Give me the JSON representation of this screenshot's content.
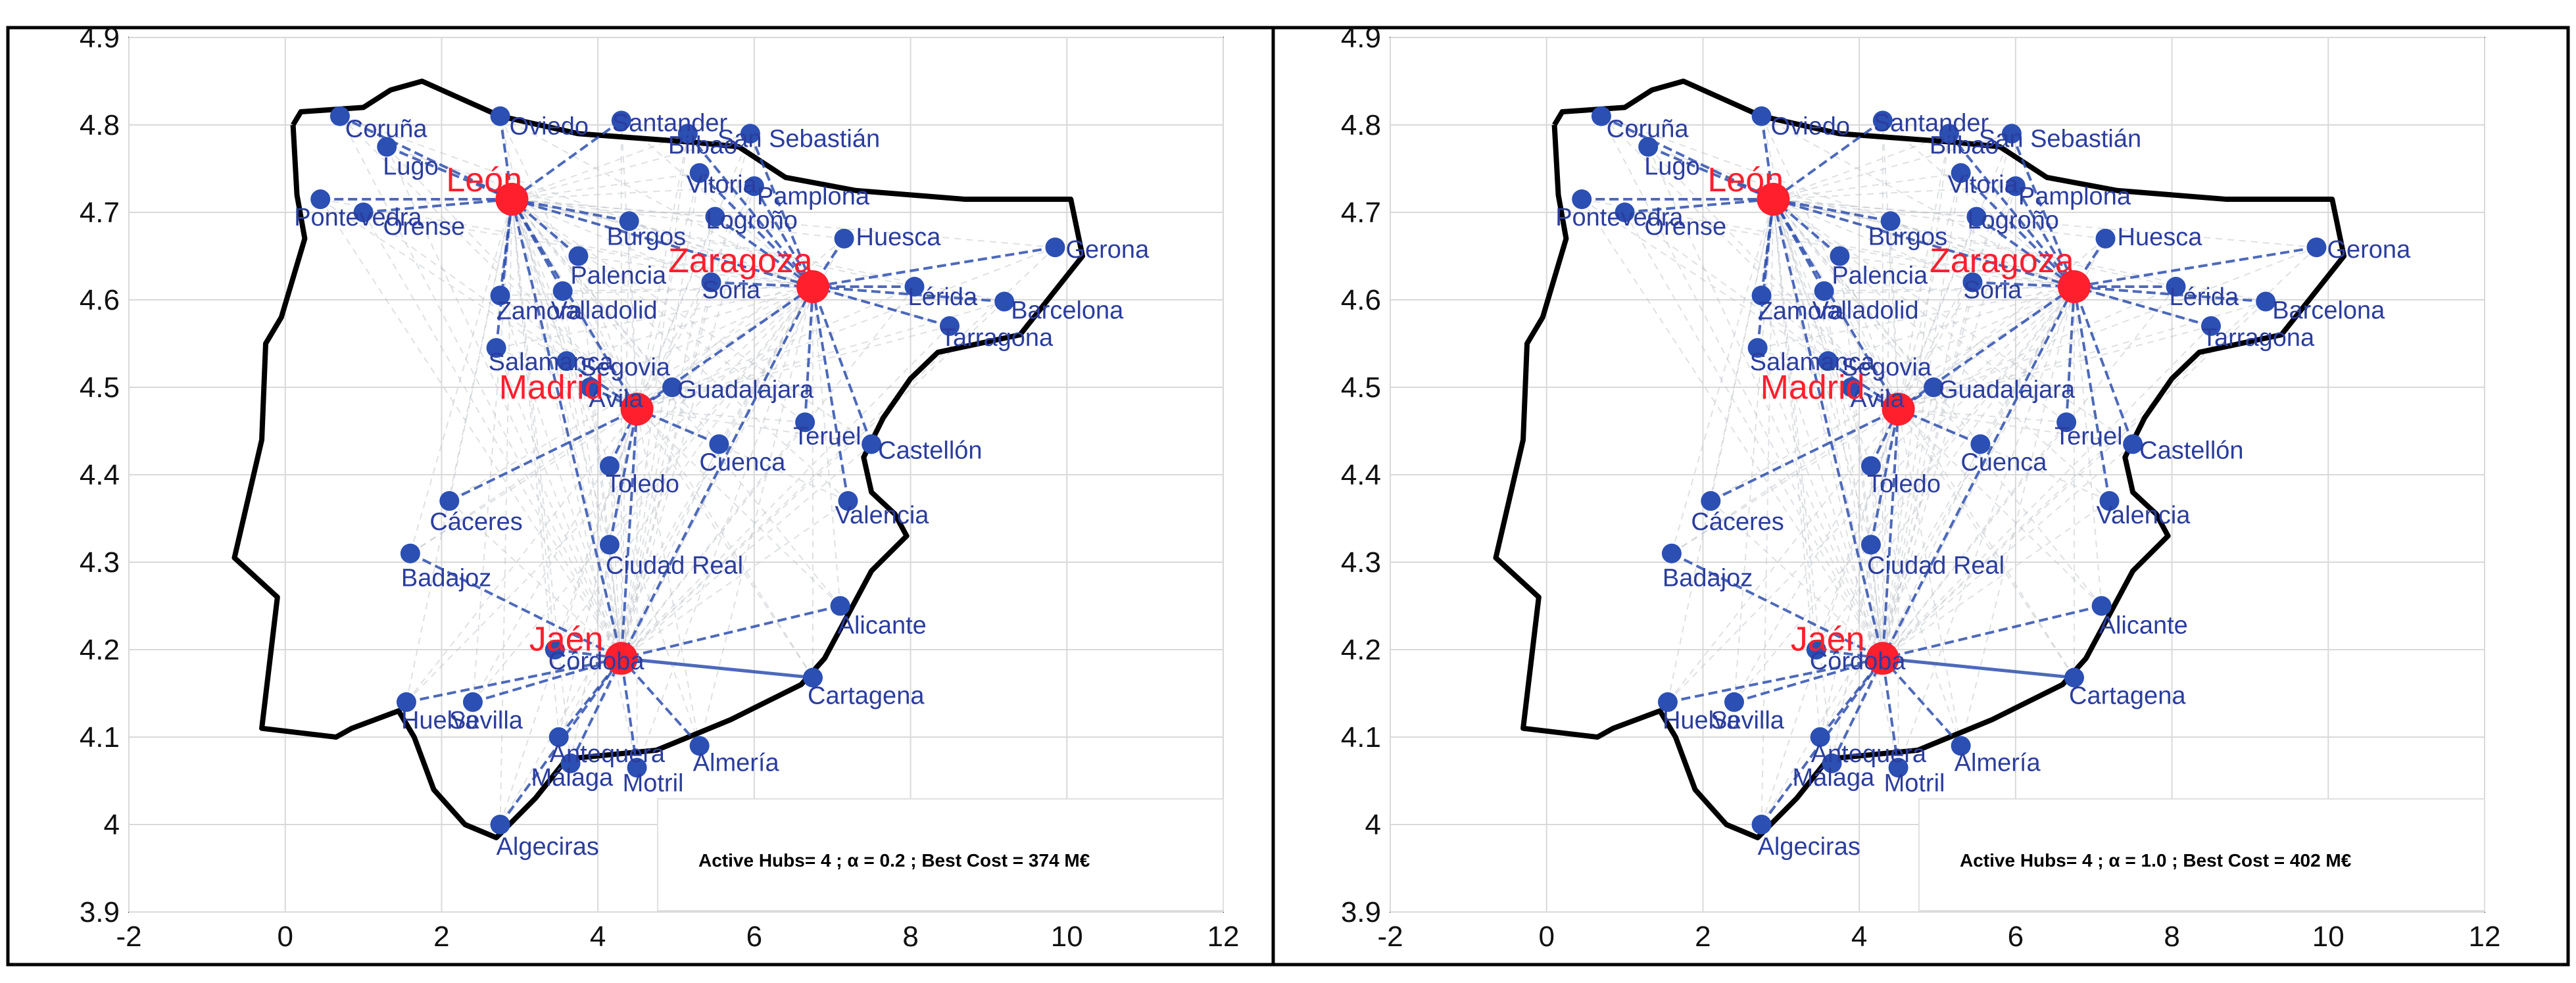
{
  "chart_data": [
    {
      "type": "scatter",
      "title": "",
      "xlabel": "",
      "ylabel": "",
      "xlim": [
        -2,
        12
      ],
      "ylim": [
        3.9,
        4.9
      ],
      "xticks": [
        "-2",
        "0",
        "2",
        "4",
        "6",
        "8",
        "10",
        "12"
      ],
      "yticks": [
        "3.9",
        "4",
        "4.1",
        "4.2",
        "4.3",
        "4.4",
        "4.5",
        "4.6",
        "4.7",
        "4.8",
        "4.9"
      ],
      "grid": true,
      "annotation": "Active Hubs= 4 ; α = 0.2 ;  Best Cost = 374 M€",
      "hubs": [
        {
          "name": "León",
          "x": 2.9,
          "y": 4.715
        },
        {
          "name": "Zaragoza",
          "x": 6.75,
          "y": 4.615
        },
        {
          "name": "Madrid",
          "x": 4.5,
          "y": 4.475
        },
        {
          "name": "Jaén",
          "x": 4.3,
          "y": 4.19
        }
      ],
      "cities": [
        {
          "name": "Coruña",
          "x": 0.7,
          "y": 4.81,
          "hub": "León"
        },
        {
          "name": "Lugo",
          "x": 1.3,
          "y": 4.775,
          "hub": "León"
        },
        {
          "name": "Oviedo",
          "x": 2.75,
          "y": 4.81,
          "hub": "León"
        },
        {
          "name": "Santander",
          "x": 4.3,
          "y": 4.805,
          "hub": "León"
        },
        {
          "name": "Bilbao",
          "x": 5.15,
          "y": 4.79,
          "hub": "Zaragoza"
        },
        {
          "name": "San Sebastián",
          "x": 5.95,
          "y": 4.79,
          "hub": "Zaragoza"
        },
        {
          "name": "Pontevedra",
          "x": 0.45,
          "y": 4.715,
          "hub": "León"
        },
        {
          "name": "Orense",
          "x": 1.0,
          "y": 4.7,
          "hub": "León"
        },
        {
          "name": "Vitoria",
          "x": 5.3,
          "y": 4.745,
          "hub": "Zaragoza"
        },
        {
          "name": "Pamplona",
          "x": 6.0,
          "y": 4.73,
          "hub": "Zaragoza"
        },
        {
          "name": "Logroño",
          "x": 5.5,
          "y": 4.695,
          "hub": "Zaragoza"
        },
        {
          "name": "Burgos",
          "x": 4.4,
          "y": 4.69,
          "hub": "León"
        },
        {
          "name": "Huesca",
          "x": 7.15,
          "y": 4.67,
          "hub": "Zaragoza"
        },
        {
          "name": "Palencia",
          "x": 3.75,
          "y": 4.65,
          "hub": "León"
        },
        {
          "name": "Soria",
          "x": 5.45,
          "y": 4.62,
          "hub": "Zaragoza"
        },
        {
          "name": "Gerona",
          "x": 9.85,
          "y": 4.66,
          "hub": "Zaragoza"
        },
        {
          "name": "Lérida",
          "x": 8.05,
          "y": 4.615,
          "hub": "Zaragoza"
        },
        {
          "name": "Barcelona",
          "x": 9.2,
          "y": 4.598,
          "hub": "Zaragoza"
        },
        {
          "name": "Tarragona",
          "x": 8.5,
          "y": 4.57,
          "hub": "Zaragoza"
        },
        {
          "name": "Zamora",
          "x": 2.75,
          "y": 4.605,
          "hub": "León"
        },
        {
          "name": "Valladolid",
          "x": 3.55,
          "y": 4.61,
          "hub": "León"
        },
        {
          "name": "Salamanca",
          "x": 2.7,
          "y": 4.545,
          "hub": "León"
        },
        {
          "name": "Segovia",
          "x": 3.6,
          "y": 4.53,
          "hub": "Madrid"
        },
        {
          "name": "Ávila",
          "x": 3.9,
          "y": 4.5,
          "hub": "Madrid"
        },
        {
          "name": "Guadalajara",
          "x": 4.95,
          "y": 4.5,
          "hub": "Madrid"
        },
        {
          "name": "Teruel",
          "x": 6.65,
          "y": 4.46,
          "hub": "Zaragoza"
        },
        {
          "name": "Cuenca",
          "x": 5.55,
          "y": 4.435,
          "hub": "Madrid"
        },
        {
          "name": "Castellón",
          "x": 7.5,
          "y": 4.435,
          "hub": "Zaragoza"
        },
        {
          "name": "Toledo",
          "x": 4.15,
          "y": 4.41,
          "hub": "Madrid"
        },
        {
          "name": "Cáceres",
          "x": 2.1,
          "y": 4.37,
          "hub": "Madrid"
        },
        {
          "name": "Valencia",
          "x": 7.2,
          "y": 4.37,
          "hub": "Zaragoza"
        },
        {
          "name": "Badajoz",
          "x": 1.6,
          "y": 4.31,
          "hub": "Jaén"
        },
        {
          "name": "Ciudad Real",
          "x": 4.15,
          "y": 4.32,
          "hub": "Madrid"
        },
        {
          "name": "Alicante",
          "x": 7.1,
          "y": 4.25,
          "hub": "Jaén"
        },
        {
          "name": "Córdoba",
          "x": 3.45,
          "y": 4.2,
          "hub": "Jaén"
        },
        {
          "name": "Cartagena",
          "x": 6.75,
          "y": 4.168,
          "hub": "Jaén"
        },
        {
          "name": "Huelva",
          "x": 1.55,
          "y": 4.14,
          "hub": "Jaén"
        },
        {
          "name": "Sevilla",
          "x": 2.4,
          "y": 4.14,
          "hub": "Jaén"
        },
        {
          "name": "Antequera",
          "x": 3.5,
          "y": 4.1,
          "hub": "Jaén"
        },
        {
          "name": "Almería",
          "x": 5.3,
          "y": 4.09,
          "hub": "Jaén"
        },
        {
          "name": "Málaga",
          "x": 3.65,
          "y": 4.07,
          "hub": "Jaén"
        },
        {
          "name": "Motril",
          "x": 4.5,
          "y": 4.065,
          "hub": "Jaén"
        },
        {
          "name": "Algeciras",
          "x": 2.75,
          "y": 4.0,
          "hub": "Jaén"
        }
      ]
    },
    {
      "type": "scatter",
      "title": "",
      "xlabel": "",
      "ylabel": "",
      "xlim": [
        -2,
        12
      ],
      "ylim": [
        3.9,
        4.9
      ],
      "xticks": [
        "-2",
        "0",
        "2",
        "4",
        "6",
        "8",
        "10",
        "12"
      ],
      "yticks": [
        "3.9",
        "4",
        "4.1",
        "4.2",
        "4.3",
        "4.4",
        "4.5",
        "4.6",
        "4.7",
        "4.8",
        "4.9"
      ],
      "grid": true,
      "annotation": "Active Hubs= 4 ; α = 1.0 ;  Best Cost = 402 M€",
      "same_network_as_panel": 0
    }
  ],
  "outline": [
    [
      0.1,
      4.8
    ],
    [
      0.2,
      4.815
    ],
    [
      1.0,
      4.82
    ],
    [
      1.35,
      4.84
    ],
    [
      1.75,
      4.85
    ],
    [
      2.25,
      4.83
    ],
    [
      2.75,
      4.81
    ],
    [
      3.75,
      4.79
    ],
    [
      5.25,
      4.78
    ],
    [
      5.8,
      4.775
    ],
    [
      6.4,
      4.74
    ],
    [
      7.3,
      4.725
    ],
    [
      8.7,
      4.715
    ],
    [
      10.05,
      4.715
    ],
    [
      10.2,
      4.65
    ],
    [
      9.4,
      4.56
    ],
    [
      8.35,
      4.54
    ],
    [
      8.0,
      4.51
    ],
    [
      7.65,
      4.465
    ],
    [
      7.4,
      4.42
    ],
    [
      7.5,
      4.38
    ],
    [
      7.8,
      4.355
    ],
    [
      7.95,
      4.33
    ],
    [
      7.5,
      4.29
    ],
    [
      7.2,
      4.24
    ],
    [
      6.9,
      4.19
    ],
    [
      6.6,
      4.16
    ],
    [
      5.7,
      4.12
    ],
    [
      4.75,
      4.085
    ],
    [
      3.6,
      4.075
    ],
    [
      3.2,
      4.03
    ],
    [
      2.7,
      3.985
    ],
    [
      2.3,
      4.0
    ],
    [
      1.9,
      4.04
    ],
    [
      1.65,
      4.1
    ],
    [
      1.45,
      4.13
    ],
    [
      0.85,
      4.11
    ],
    [
      0.65,
      4.1
    ],
    [
      -0.3,
      4.11
    ],
    [
      -0.1,
      4.26
    ],
    [
      -0.65,
      4.305
    ],
    [
      -0.3,
      4.44
    ],
    [
      -0.25,
      4.55
    ],
    [
      -0.05,
      4.58
    ],
    [
      0.25,
      4.67
    ],
    [
      0.15,
      4.72
    ],
    [
      0.1,
      4.8
    ]
  ]
}
